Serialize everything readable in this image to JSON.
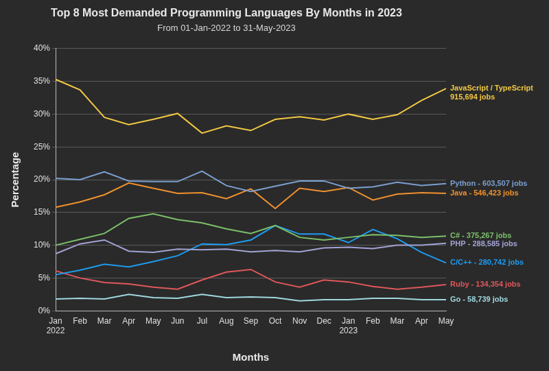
{
  "chart_data": {
    "type": "line",
    "title": "Top 8 Most Demanded Programming Languages By Months in 2023",
    "subtitle": "From 01-Jan-2022 to 31-May-2023",
    "x_label": "Months",
    "y_label": "Percentage",
    "categories": [
      "Jan 2022",
      "Feb",
      "Mar",
      "Apr",
      "May",
      "Jun",
      "Jul",
      "Aug",
      "Sep",
      "Oct",
      "Nov",
      "Dec",
      "Jan 2023",
      "Feb",
      "Mar",
      "Apr",
      "May"
    ],
    "series": [
      {
        "name": "JavaScript / TypeScript",
        "label": [
          "JavaScript / TypeScript",
          "915,694 jobs"
        ],
        "color": "#f2c843",
        "values": [
          35.3,
          33.7,
          29.5,
          28.4,
          29.2,
          30.1,
          27.1,
          28.2,
          27.5,
          29.2,
          29.6,
          29.1,
          30.0,
          29.2,
          29.9,
          32.1,
          33.9
        ]
      },
      {
        "name": "Python",
        "label": [
          "Python - 603,507 jobs"
        ],
        "color": "#7b9fd0",
        "values": [
          20.2,
          20.0,
          21.2,
          19.8,
          19.7,
          19.7,
          21.3,
          19.1,
          18.2,
          19.0,
          19.8,
          19.8,
          18.7,
          18.9,
          19.6,
          19.1,
          19.4
        ]
      },
      {
        "name": "Java",
        "label": [
          "Java - 546,423 jobs"
        ],
        "color": "#f0912e",
        "values": [
          15.8,
          16.6,
          17.7,
          19.5,
          18.7,
          17.9,
          18.0,
          17.1,
          18.6,
          15.6,
          18.7,
          18.2,
          18.8,
          16.9,
          17.8,
          18.0,
          17.9
        ]
      },
      {
        "name": "C#",
        "label": [
          "C# - 375,267 jobs"
        ],
        "color": "#7cc06a",
        "values": [
          10.0,
          10.9,
          11.8,
          14.1,
          14.8,
          13.9,
          13.4,
          12.5,
          11.8,
          13.0,
          11.2,
          10.8,
          11.2,
          11.6,
          11.5,
          11.2,
          11.4
        ]
      },
      {
        "name": "PHP",
        "label": [
          "PHP - 288,585 jobs"
        ],
        "color": "#a3a3d6",
        "values": [
          8.7,
          10.2,
          10.8,
          9.1,
          8.9,
          9.4,
          9.3,
          9.4,
          9.0,
          9.2,
          9.0,
          9.6,
          9.7,
          9.5,
          10.0,
          10.0,
          10.3
        ]
      },
      {
        "name": "C/C++",
        "label": [
          "C/C++ - 280,742 jobs"
        ],
        "color": "#1e9cf0",
        "values": [
          5.5,
          6.2,
          7.1,
          6.7,
          7.5,
          8.4,
          10.2,
          10.1,
          10.8,
          13.0,
          11.7,
          11.7,
          10.4,
          12.4,
          11.0,
          8.9,
          7.3
        ]
      },
      {
        "name": "Ruby",
        "label": [
          "Ruby - 134,354 jobs"
        ],
        "color": "#e0575a",
        "values": [
          6.1,
          5.0,
          4.3,
          4.1,
          3.6,
          3.3,
          4.7,
          5.9,
          6.3,
          4.4,
          3.6,
          4.7,
          4.4,
          3.7,
          3.3,
          3.6,
          4.0
        ]
      },
      {
        "name": "Go",
        "label": [
          "Go - 58,739 jobs"
        ],
        "color": "#9fd8e0",
        "values": [
          1.8,
          1.9,
          1.8,
          2.5,
          2.0,
          1.9,
          2.5,
          2.0,
          2.1,
          2.0,
          1.5,
          1.7,
          1.7,
          1.9,
          1.9,
          1.7,
          1.7
        ]
      }
    ],
    "ylim": [
      0,
      40
    ],
    "yticks": [
      {
        "value": 0,
        "label": "0%"
      },
      {
        "value": 5,
        "label": "5%"
      },
      {
        "value": 10,
        "label": "10%"
      },
      {
        "value": 15,
        "label": "15%"
      },
      {
        "value": 20,
        "label": "20%"
      },
      {
        "value": 25,
        "label": "25%"
      },
      {
        "value": 30,
        "label": "30%"
      },
      {
        "value": 35,
        "label": "35%"
      },
      {
        "value": 40,
        "label": "40%"
      }
    ],
    "grid": true
  }
}
